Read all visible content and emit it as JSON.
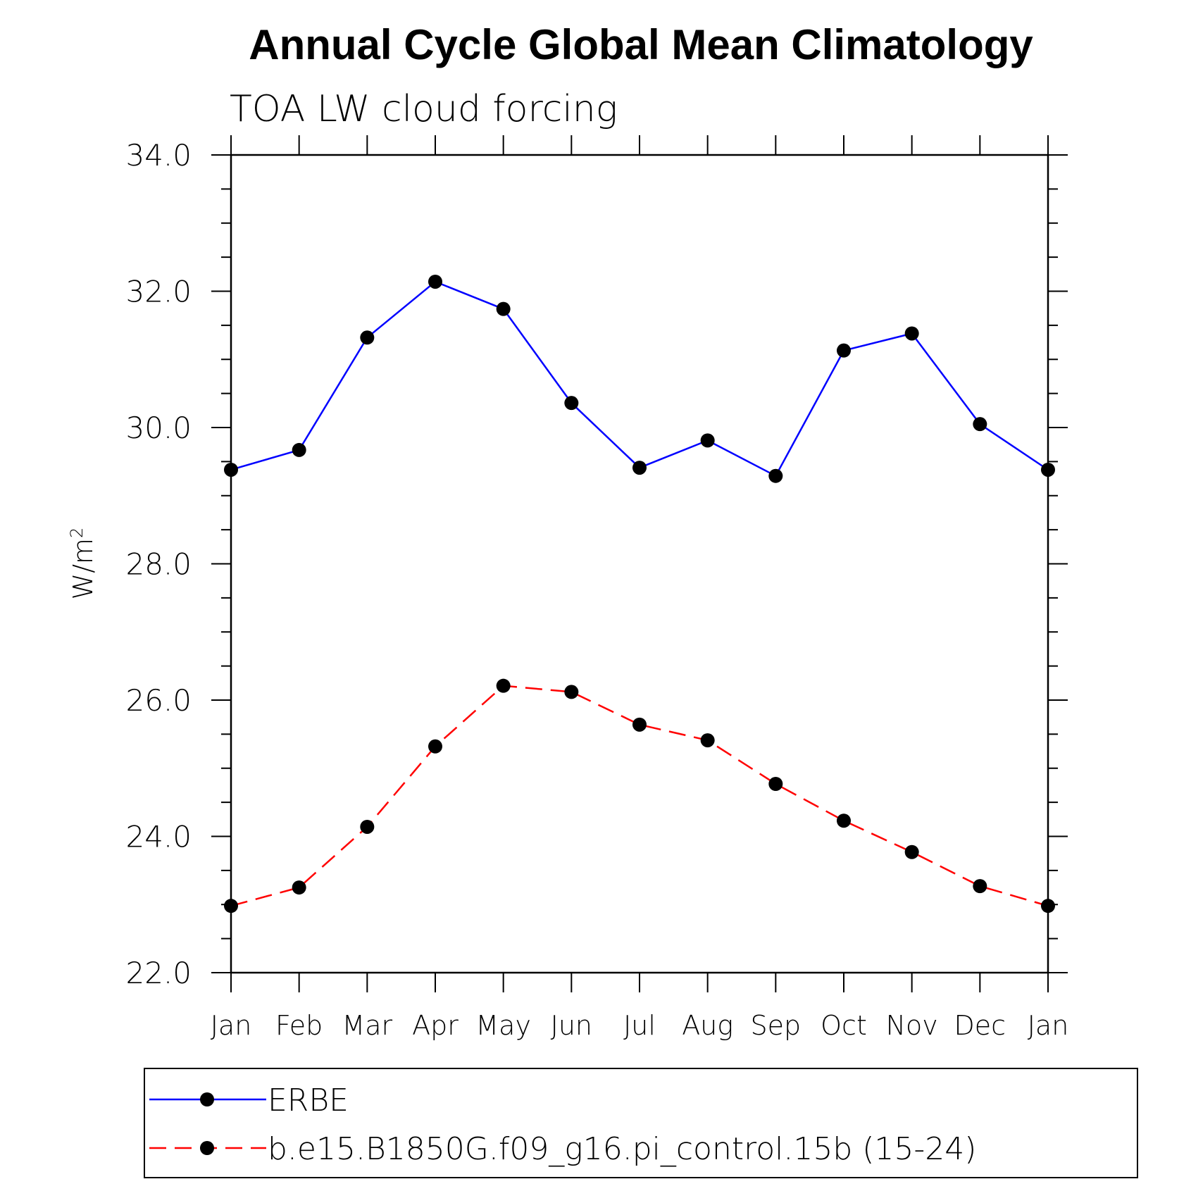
{
  "chart_data": {
    "type": "line",
    "title": "Annual Cycle Global Mean Climatology",
    "subtitle": "TOA LW cloud forcing",
    "ylabel": "W/m",
    "ylabel_superscript": "2",
    "xlabel": "",
    "categories": [
      "Jan",
      "Feb",
      "Mar",
      "Apr",
      "May",
      "Jun",
      "Jul",
      "Aug",
      "Sep",
      "Oct",
      "Nov",
      "Dec",
      "Jan"
    ],
    "ylim": [
      22.0,
      34.0
    ],
    "yticks": [
      "22.0",
      "24.0",
      "26.0",
      "28.0",
      "30.0",
      "32.0",
      "34.0"
    ],
    "grid": false,
    "legend_position": "bottom",
    "series": [
      {
        "name": "ERBE",
        "color": "#0000ff",
        "line_style": "solid",
        "marker": "filled-circle",
        "values": [
          29.38,
          29.67,
          31.32,
          32.14,
          31.74,
          30.36,
          29.41,
          29.81,
          29.29,
          31.13,
          31.38,
          30.05,
          29.38
        ]
      },
      {
        "name": "b.e15.B1850G.f09_g16.pi_control.15b (15-24)",
        "color": "#ff0000",
        "line_style": "dashed",
        "marker": "filled-circle",
        "values": [
          22.98,
          23.25,
          24.14,
          25.32,
          26.21,
          26.12,
          25.64,
          25.41,
          24.77,
          24.23,
          23.77,
          23.27,
          22.98
        ]
      }
    ]
  }
}
